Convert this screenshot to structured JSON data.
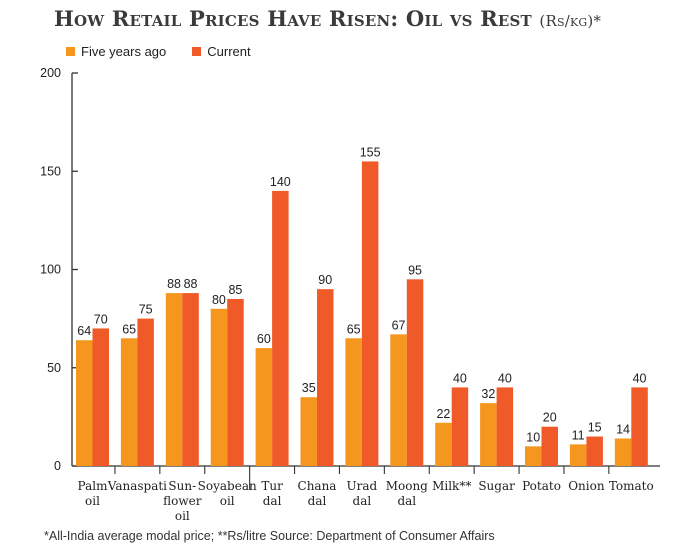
{
  "chart_data": {
    "type": "bar",
    "title": "How Retail Prices Have Risen: Oil vs Rest",
    "title_unit": "(Rs/kg)*",
    "categories": [
      [
        "Palm",
        "oil"
      ],
      [
        "Vanaspati"
      ],
      [
        "Sun-",
        "flower",
        "oil"
      ],
      [
        "Soyabean",
        "oil"
      ],
      [
        "Tur",
        "dal"
      ],
      [
        "Chana",
        "dal"
      ],
      [
        "Urad",
        "dal"
      ],
      [
        "Moong",
        "dal"
      ],
      [
        "Milk**"
      ],
      [
        "Sugar"
      ],
      [
        "Potato"
      ],
      [
        "Onion"
      ],
      [
        "Tomato"
      ]
    ],
    "series": [
      {
        "name": "Five years ago",
        "color": "#f5961f",
        "values": [
          64,
          65,
          88,
          80,
          60,
          35,
          65,
          67,
          22,
          32,
          10,
          11,
          14
        ]
      },
      {
        "name": "Current",
        "color": "#f05a28",
        "values": [
          70,
          75,
          88,
          85,
          140,
          90,
          155,
          95,
          40,
          40,
          20,
          15,
          40
        ]
      }
    ],
    "ylim": [
      0,
      200
    ],
    "yticks": [
      0,
      50,
      100,
      150,
      200
    ],
    "legend_position": "top-left",
    "grid": false
  },
  "footnote": "*All-India average modal price; **Rs/litre Source: Department of Consumer Affairs"
}
